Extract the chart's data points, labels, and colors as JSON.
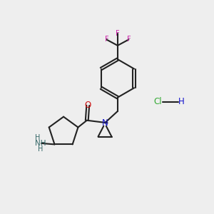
{
  "background_color": "#eeeeee",
  "bond_color": "#222222",
  "N_color": "#1111cc",
  "O_color": "#cc1111",
  "F_color": "#cc22aa",
  "Cl_color": "#33aa33",
  "NH_color": "#336666",
  "figsize": [
    3.0,
    3.0
  ],
  "dpi": 100,
  "xlim": [
    0,
    10
  ],
  "ylim": [
    0,
    10
  ]
}
